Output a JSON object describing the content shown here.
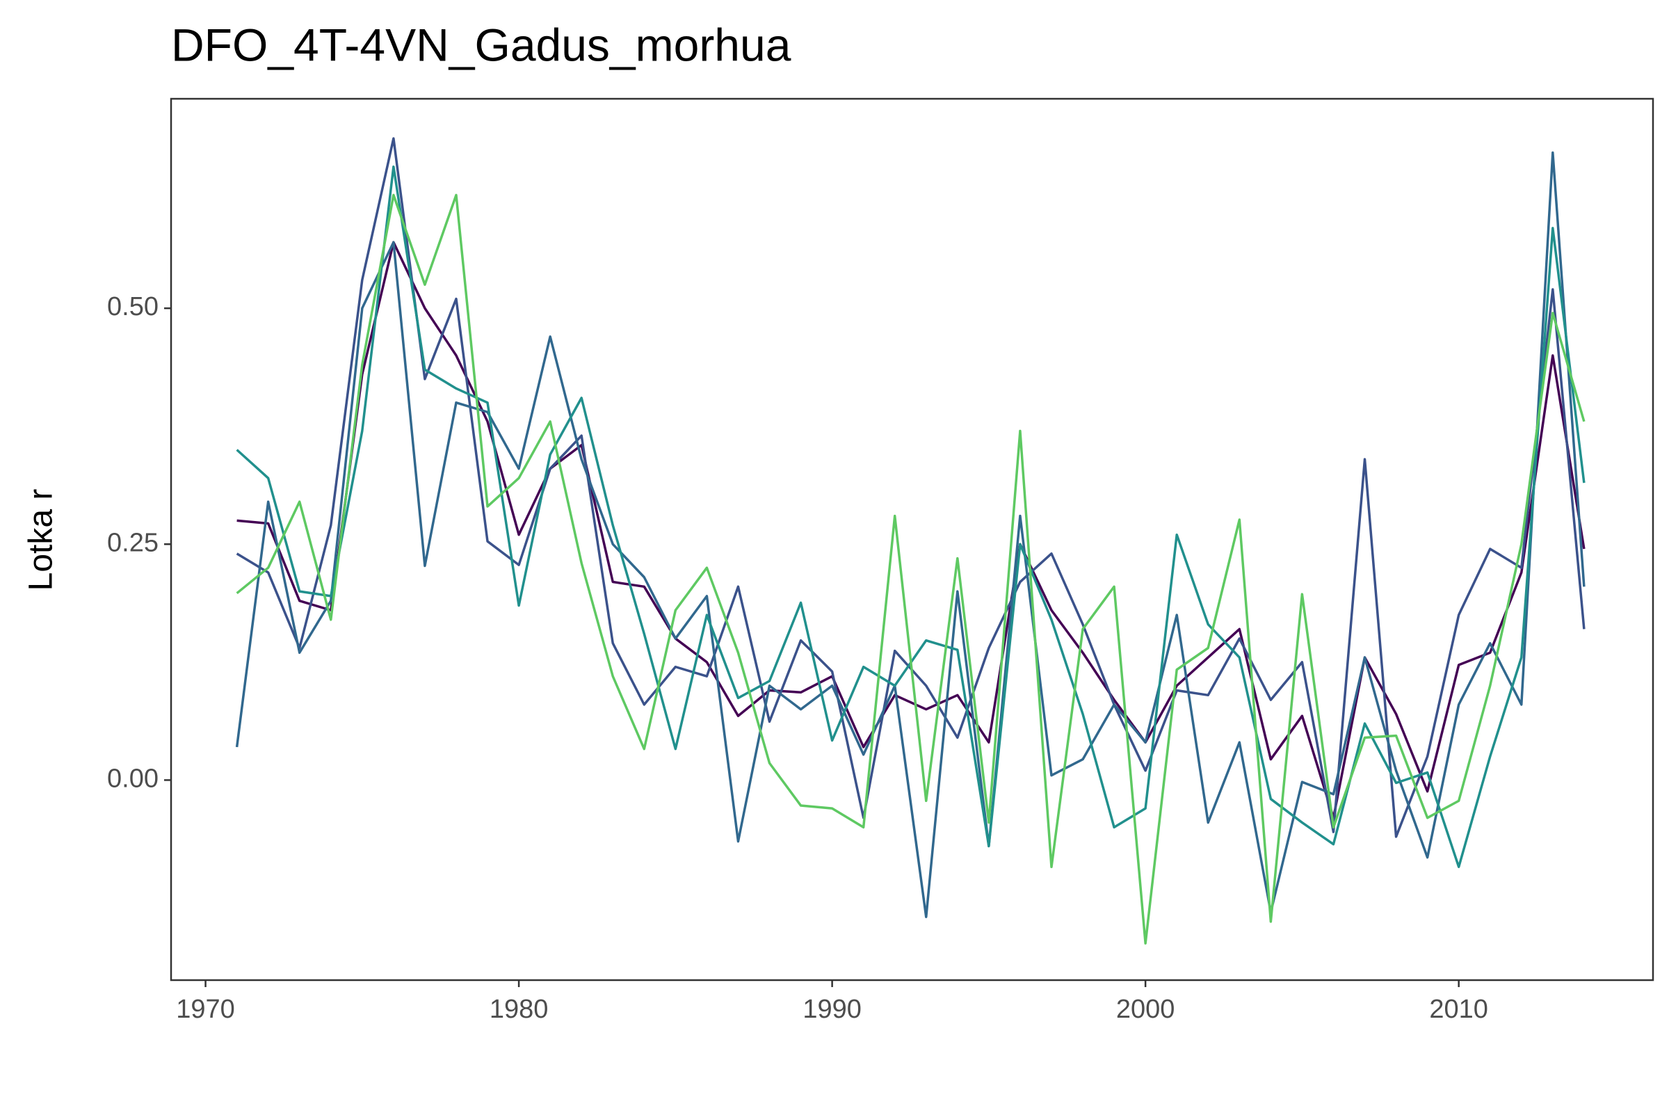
{
  "chart_data": {
    "type": "line",
    "title": "DFO_4T-4VN_Gadus_morhua",
    "y_label": "Lotka r",
    "x": [
      1971,
      1972,
      1973,
      1974,
      1975,
      1976,
      1977,
      1978,
      1979,
      1980,
      1981,
      1982,
      1983,
      1984,
      1985,
      1986,
      1987,
      1988,
      1989,
      1990,
      1991,
      1992,
      1993,
      1994,
      1995,
      1996,
      1997,
      1998,
      1999,
      2000,
      2001,
      2002,
      2003,
      2004,
      2005,
      2006,
      2007,
      2008,
      2009,
      2010,
      2011,
      2012,
      2013,
      2014
    ],
    "series": [
      {
        "color": "#440154",
        "values": [
          0.275,
          0.272,
          0.19,
          0.18,
          0.43,
          0.57,
          0.5,
          0.45,
          0.38,
          0.26,
          0.33,
          0.355,
          0.21,
          0.205,
          0.15,
          0.125,
          0.068,
          0.095,
          0.093,
          0.11,
          0.035,
          0.09,
          0.075,
          0.09,
          0.04,
          0.25,
          0.18,
          0.135,
          0.085,
          0.04,
          0.1,
          0.13,
          0.16,
          0.022,
          0.068,
          -0.04,
          0.13,
          0.07,
          -0.012,
          0.122,
          0.135,
          0.22,
          0.45,
          0.245
        ]
      },
      {
        "color": "#3b528b",
        "values": [
          0.24,
          0.22,
          0.14,
          0.27,
          0.53,
          0.68,
          0.425,
          0.51,
          0.253,
          0.228,
          0.33,
          0.365,
          0.145,
          0.08,
          0.12,
          0.11,
          0.205,
          0.062,
          0.148,
          0.115,
          -0.04,
          0.137,
          0.1,
          0.045,
          0.14,
          0.21,
          0.24,
          0.165,
          0.08,
          0.01,
          0.095,
          0.09,
          0.15,
          0.085,
          0.125,
          -0.055,
          0.34,
          -0.06,
          0.025,
          0.175,
          0.245,
          0.225,
          0.52,
          0.16
        ]
      },
      {
        "color": "#31688e",
        "values": [
          0.035,
          0.295,
          0.135,
          0.19,
          0.5,
          0.57,
          0.227,
          0.4,
          0.39,
          0.33,
          0.47,
          0.34,
          0.25,
          0.215,
          0.15,
          0.195,
          -0.065,
          0.1,
          0.075,
          0.1,
          0.027,
          0.1,
          -0.145,
          0.2,
          -0.07,
          0.28,
          0.005,
          0.022,
          0.08,
          0.04,
          0.175,
          -0.045,
          0.04,
          -0.14,
          -0.002,
          -0.015,
          0.13,
          0.01,
          -0.082,
          0.08,
          0.145,
          0.08,
          0.665,
          0.205
        ]
      },
      {
        "color": "#21908d",
        "values": [
          0.35,
          0.32,
          0.2,
          0.195,
          0.37,
          0.65,
          0.435,
          0.415,
          0.4,
          0.185,
          0.345,
          0.405,
          0.27,
          0.155,
          0.033,
          0.175,
          0.087,
          0.105,
          0.188,
          0.042,
          0.12,
          0.1,
          0.148,
          0.138,
          -0.07,
          0.25,
          0.17,
          0.07,
          -0.05,
          -0.03,
          0.26,
          0.165,
          0.13,
          -0.02,
          -0.045,
          -0.068,
          0.06,
          -0.003,
          0.008,
          -0.092,
          0.025,
          0.13,
          0.585,
          0.315
        ]
      },
      {
        "color": "#5ec962",
        "values": [
          0.198,
          0.225,
          0.295,
          0.17,
          0.44,
          0.62,
          0.525,
          0.62,
          0.29,
          0.32,
          0.38,
          0.23,
          0.11,
          0.033,
          0.18,
          0.225,
          0.135,
          0.018,
          -0.027,
          -0.03,
          -0.05,
          0.28,
          -0.022,
          0.235,
          -0.045,
          0.37,
          -0.092,
          0.16,
          0.205,
          -0.173,
          0.117,
          0.14,
          0.276,
          -0.15,
          0.197,
          -0.05,
          0.045,
          0.047,
          -0.04,
          -0.022,
          0.1,
          0.25,
          0.495,
          0.38
        ]
      }
    ],
    "xlim": [
      1968.9,
      2016.2
    ],
    "xticks": [
      1970,
      1980,
      1990,
      2000,
      2010
    ],
    "ylim": [
      -0.212,
      0.722
    ],
    "yticks": [
      {
        "value": 0,
        "label": "0.00"
      },
      0.25,
      {
        "value": 0.5,
        "label": "0.50"
      }
    ]
  }
}
